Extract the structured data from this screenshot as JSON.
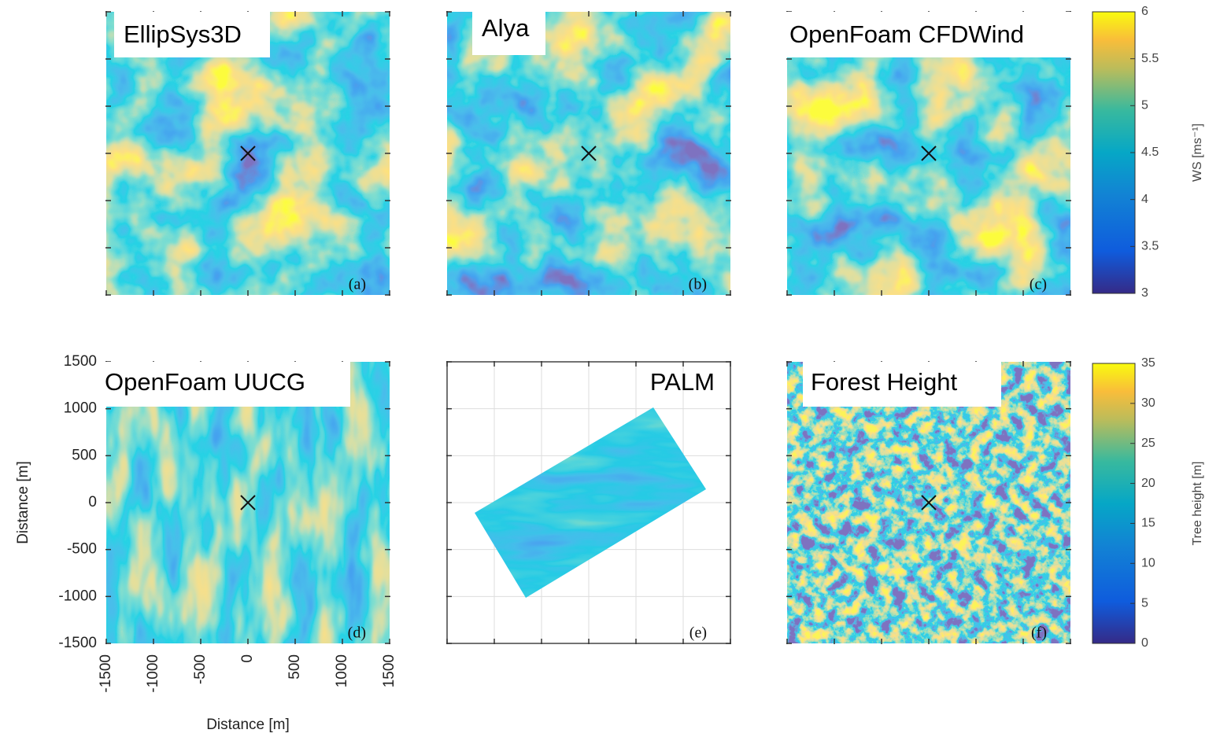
{
  "panels": [
    {
      "title": "EllipSys3D",
      "letter": "(a)"
    },
    {
      "title": "Alya",
      "letter": "(b)"
    },
    {
      "title": "OpenFoam CFDWind",
      "letter": "(c)"
    },
    {
      "title": "OpenFoam UUCG",
      "letter": "(d)"
    },
    {
      "title": "PALM",
      "letter": "(e)"
    },
    {
      "title": "Forest Height",
      "letter": "(f)"
    }
  ],
  "axes": {
    "xlabel": "Distance [m]",
    "ylabel": "Distance [m]",
    "xlim": [
      -1500,
      1500
    ],
    "ylim": [
      -1500,
      1500
    ],
    "xticks": [
      -1500,
      -1000,
      -500,
      0,
      500,
      1000,
      1500
    ],
    "yticks": [
      -1500,
      -1000,
      -500,
      0,
      500,
      1000,
      1500
    ]
  },
  "colorbars": [
    {
      "label": "WS [ms⁻¹]",
      "lim": [
        3,
        6
      ],
      "ticks": [
        3,
        3.5,
        4,
        4.5,
        5,
        5.5,
        6
      ]
    },
    {
      "label": "Tree height [m]",
      "lim": [
        0,
        35
      ],
      "ticks": [
        0,
        5,
        10,
        15,
        20,
        25,
        30,
        35
      ]
    }
  ]
}
